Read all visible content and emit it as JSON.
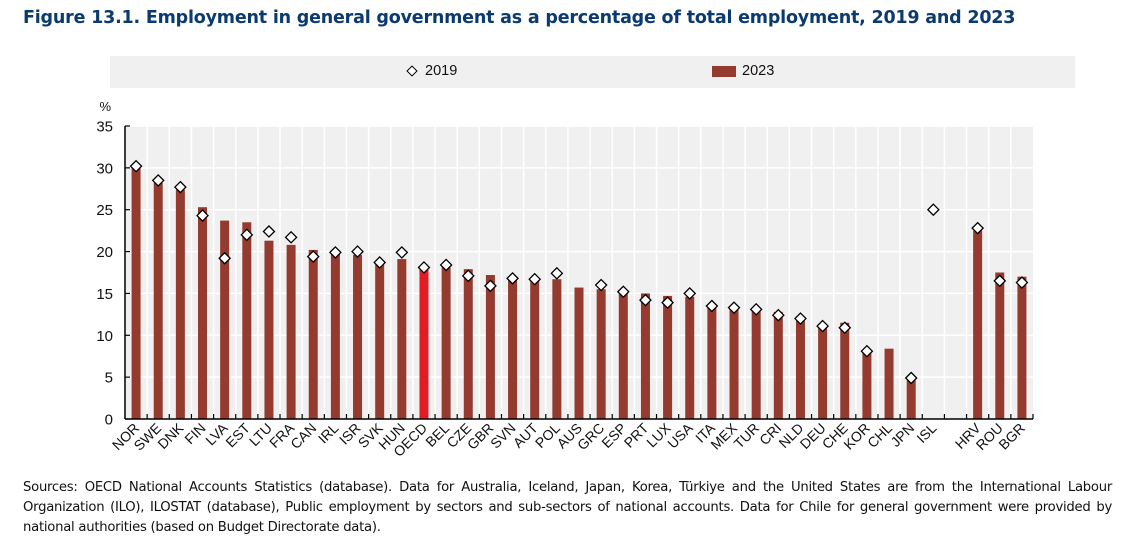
{
  "title": "Figure 13.1. Employment in general government as a percentage of total employment, 2019 and 2023",
  "legend": {
    "items": [
      {
        "label": "2019",
        "marker": "diamond-icon"
      },
      {
        "label": "2023",
        "marker": "bar-swatch"
      }
    ]
  },
  "sources": "Sources: OECD National Accounts Statistics (database). Data for Australia, Iceland, Japan, Korea, Türkiye and the United States are from the International Labour Organization (ILO), ILOSTAT (database), Public employment by sectors and sub-sectors of national accounts. Data for Chile for general government were provided by national authorities (based on Budget Directorate data).",
  "colors": {
    "bar": "#943a2f",
    "highlight": "#e31b23",
    "plot_bg": "#f0f0f0",
    "title": "#0b3a6f"
  },
  "chart_data": {
    "type": "bar",
    "title": "Figure 13.1. Employment in general government as a percentage of total employment, 2019 and 2023",
    "xlabel": "",
    "ylabel": "%",
    "ylim": [
      0,
      35
    ],
    "yticks": [
      0,
      5,
      10,
      15,
      20,
      25,
      30,
      35
    ],
    "grid": true,
    "legend_position": "top",
    "highlight_category": "OECD",
    "categories": [
      "NOR",
      "SWE",
      "DNK",
      "FIN",
      "LVA",
      "EST",
      "LTU",
      "FRA",
      "CAN",
      "IRL",
      "ISR",
      "SVK",
      "HUN",
      "OECD",
      "BEL",
      "CZE",
      "GBR",
      "SVN",
      "AUT",
      "POL",
      "AUS",
      "GRC",
      "ESP",
      "PRT",
      "LUX",
      "USA",
      "ITA",
      "MEX",
      "TUR",
      "CRI",
      "NLD",
      "DEU",
      "CHE",
      "KOR",
      "CHL",
      "JPN",
      "ISL",
      "",
      "HRV",
      "ROU",
      "BGR"
    ],
    "series": [
      {
        "name": "2023",
        "type": "bar",
        "values": [
          30.0,
          28.2,
          27.4,
          25.3,
          23.7,
          23.5,
          21.3,
          20.8,
          20.2,
          20.0,
          19.6,
          18.8,
          19.1,
          17.9,
          18.1,
          17.9,
          17.2,
          16.7,
          16.6,
          16.7,
          15.7,
          15.5,
          15.2,
          15.0,
          14.7,
          14.6,
          13.6,
          13.1,
          12.9,
          12.8,
          11.8,
          11.4,
          11.5,
          8.2,
          8.4,
          4.6,
          null,
          null,
          22.5,
          17.5,
          17.0
        ]
      },
      {
        "name": "2019",
        "type": "marker-diamond",
        "values": [
          30.2,
          28.5,
          27.7,
          24.3,
          19.2,
          22.0,
          22.4,
          21.7,
          19.4,
          19.9,
          20.0,
          18.7,
          19.9,
          18.1,
          18.4,
          17.1,
          15.9,
          16.8,
          16.7,
          17.4,
          null,
          16.0,
          15.2,
          14.2,
          13.9,
          15.0,
          13.5,
          13.3,
          13.1,
          12.4,
          12.0,
          11.1,
          10.9,
          8.1,
          null,
          4.9,
          25.0,
          null,
          22.8,
          16.5,
          16.3
        ]
      }
    ]
  }
}
